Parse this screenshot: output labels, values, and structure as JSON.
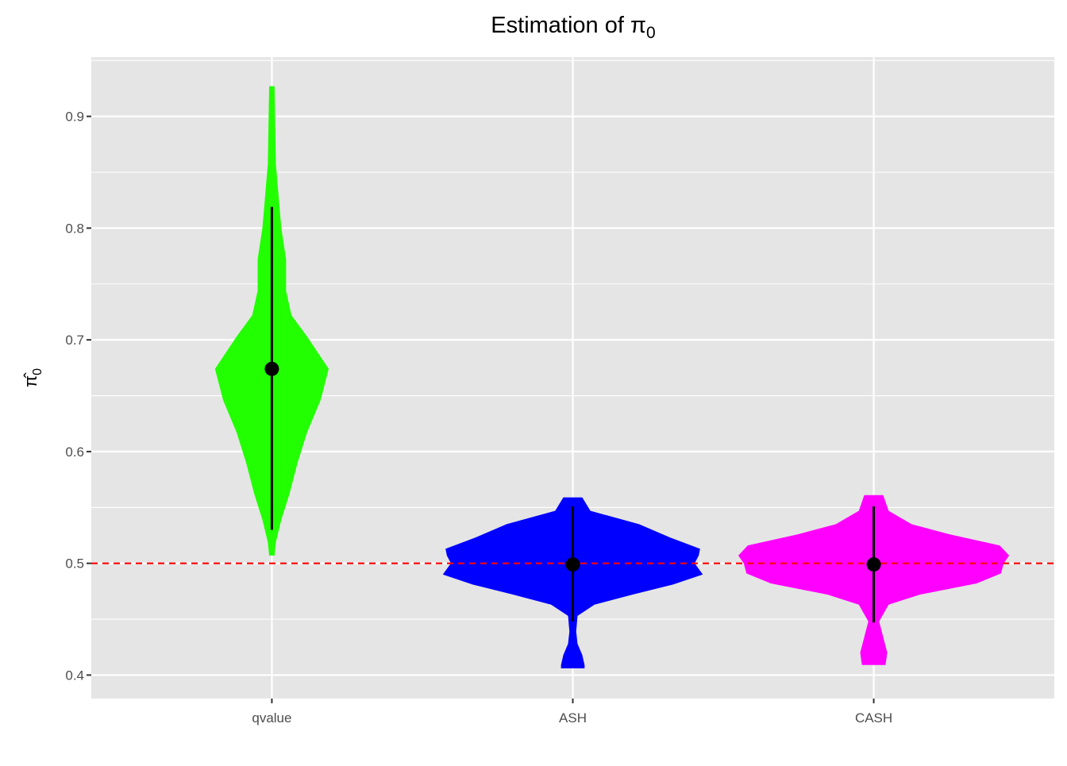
{
  "chart_data": {
    "type": "violin",
    "title": "Estimation of π",
    "title_subscript": "0",
    "xlabel": "",
    "ylabel": "π̂",
    "ylabel_subscript": "0",
    "categories": [
      "qvalue",
      "ASH",
      "CASH"
    ],
    "ylim": [
      0.379,
      0.953
    ],
    "yticks": [
      0.4,
      0.5,
      0.6,
      0.7,
      0.8,
      0.9
    ],
    "ytick_labels": [
      "0.4",
      "0.5",
      "0.6",
      "0.7",
      "0.8",
      "0.9"
    ],
    "grid": true,
    "reference_line": {
      "y": 0.5,
      "color": "#FF0000",
      "style": "dashed"
    },
    "series": [
      {
        "category": "qvalue",
        "color": "#22FF00",
        "point": 0.674,
        "range": [
          0.53,
          0.819
        ],
        "density": [
          [
            0.927,
            0.02
          ],
          [
            0.857,
            0.03
          ],
          [
            0.8,
            0.07
          ],
          [
            0.772,
            0.105
          ],
          [
            0.744,
            0.105
          ],
          [
            0.722,
            0.145
          ],
          [
            0.703,
            0.26
          ],
          [
            0.674,
            0.42
          ],
          [
            0.646,
            0.36
          ],
          [
            0.617,
            0.26
          ],
          [
            0.59,
            0.19
          ],
          [
            0.562,
            0.13
          ],
          [
            0.539,
            0.07
          ],
          [
            0.519,
            0.03
          ],
          [
            0.507,
            0.02
          ]
        ]
      },
      {
        "category": "ASH",
        "color": "#0000FF",
        "point": 0.499,
        "range": [
          0.448,
          0.551
        ],
        "density": [
          [
            0.559,
            0.07
          ],
          [
            0.547,
            0.13
          ],
          [
            0.535,
            0.49
          ],
          [
            0.523,
            0.72
          ],
          [
            0.513,
            0.94
          ],
          [
            0.507,
            0.93
          ],
          [
            0.5,
            0.9
          ],
          [
            0.49,
            0.96
          ],
          [
            0.481,
            0.74
          ],
          [
            0.472,
            0.44
          ],
          [
            0.463,
            0.16
          ],
          [
            0.453,
            0.035
          ],
          [
            0.439,
            0.025
          ],
          [
            0.428,
            0.035
          ],
          [
            0.418,
            0.07
          ],
          [
            0.409,
            0.087
          ],
          [
            0.406,
            0.087
          ]
        ]
      },
      {
        "category": "CASH",
        "color": "#FF00FF",
        "point": 0.499,
        "range": [
          0.447,
          0.551
        ],
        "density": [
          [
            0.561,
            0.07
          ],
          [
            0.547,
            0.11
          ],
          [
            0.535,
            0.28
          ],
          [
            0.526,
            0.56
          ],
          [
            0.516,
            0.93
          ],
          [
            0.507,
            1.0
          ],
          [
            0.5,
            0.96
          ],
          [
            0.491,
            0.94
          ],
          [
            0.482,
            0.76
          ],
          [
            0.472,
            0.34
          ],
          [
            0.463,
            0.11
          ],
          [
            0.448,
            0.04
          ],
          [
            0.434,
            0.07
          ],
          [
            0.42,
            0.1
          ],
          [
            0.409,
            0.087
          ]
        ]
      }
    ]
  }
}
